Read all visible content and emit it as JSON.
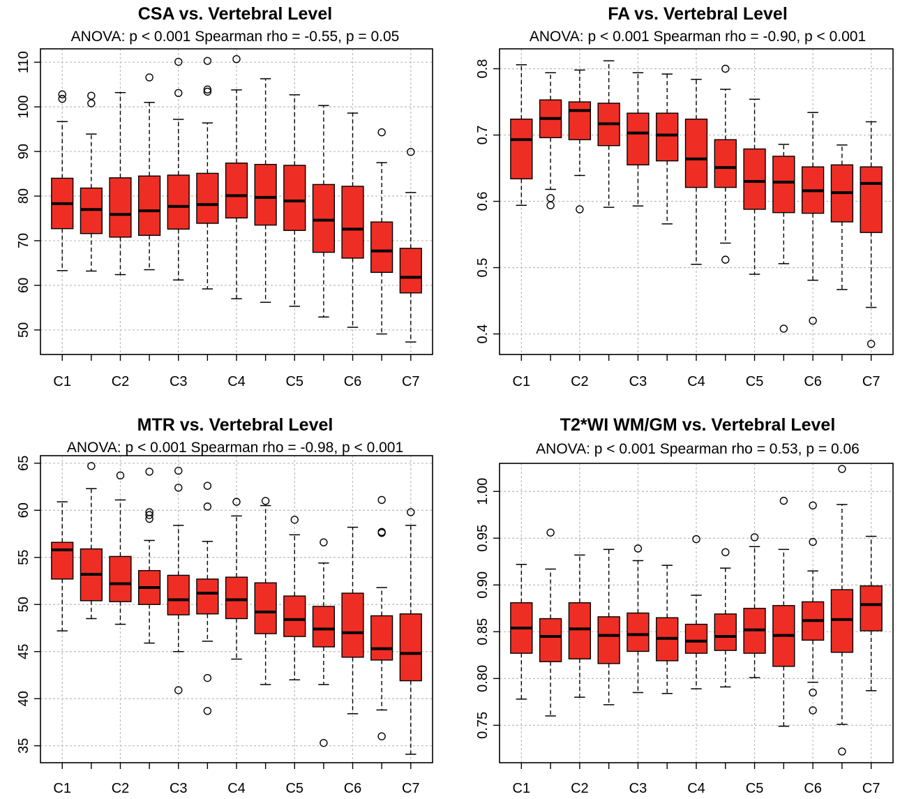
{
  "style": {
    "box_fill": "#ee2e24",
    "stroke": "#000000",
    "grid": "#bbbbbb"
  },
  "chart_data": [
    {
      "type": "box",
      "title": "CSA vs. Vertebral Level",
      "subtitle": "ANOVA: p < 0.001   Spearman rho = -0.55, p = 0.05",
      "xtick_labels": [
        "C1",
        "C2",
        "C3",
        "C4",
        "C5",
        "C6",
        "C7"
      ],
      "yticks": [
        50,
        60,
        70,
        80,
        90,
        100,
        110
      ],
      "ylim": [
        44.5,
        113
      ],
      "grid": true,
      "boxes": [
        {
          "min": 63.3,
          "q1": 72.7,
          "median": 78.3,
          "q3": 84.0,
          "max": 96.7,
          "outliers": [
            101.8,
            102.8
          ]
        },
        {
          "min": 63.2,
          "q1": 71.6,
          "median": 77.0,
          "q3": 81.8,
          "max": 93.9,
          "outliers": [
            100.8,
            102.5
          ]
        },
        {
          "min": 62.4,
          "q1": 70.8,
          "median": 75.9,
          "q3": 84.1,
          "max": 103.2,
          "outliers": []
        },
        {
          "min": 63.5,
          "q1": 71.2,
          "median": 76.7,
          "q3": 84.5,
          "max": 101.0,
          "outliers": [
            106.6
          ]
        },
        {
          "min": 61.2,
          "q1": 72.6,
          "median": 77.7,
          "q3": 84.7,
          "max": 97.2,
          "outliers": [
            103.1,
            110.1
          ]
        },
        {
          "min": 59.2,
          "q1": 73.9,
          "median": 78.1,
          "q3": 85.1,
          "max": 96.4,
          "outliers": [
            103.4,
            103.9,
            110.3
          ]
        },
        {
          "min": 57.0,
          "q1": 75.1,
          "median": 80.1,
          "q3": 87.4,
          "max": 103.8,
          "outliers": [
            110.7
          ]
        },
        {
          "min": 56.2,
          "q1": 73.5,
          "median": 79.7,
          "q3": 87.1,
          "max": 106.3,
          "outliers": []
        },
        {
          "min": 55.3,
          "q1": 72.3,
          "median": 78.9,
          "q3": 86.9,
          "max": 102.7,
          "outliers": []
        },
        {
          "min": 52.9,
          "q1": 67.4,
          "median": 74.6,
          "q3": 82.6,
          "max": 100.3,
          "outliers": []
        },
        {
          "min": 50.6,
          "q1": 66.1,
          "median": 72.6,
          "q3": 82.2,
          "max": 98.6,
          "outliers": []
        },
        {
          "min": 49.1,
          "q1": 62.9,
          "median": 67.7,
          "q3": 74.2,
          "max": 87.5,
          "outliers": [
            94.3
          ]
        },
        {
          "min": 47.3,
          "q1": 58.3,
          "median": 61.8,
          "q3": 68.3,
          "max": 80.8,
          "outliers": [
            89.9
          ]
        }
      ]
    },
    {
      "type": "box",
      "title": "FA vs. Vertebral Level",
      "subtitle": "ANOVA: p < 0.001   Spearman rho = -0.90, p < 0.001",
      "xtick_labels": [
        "C1",
        "C2",
        "C3",
        "C4",
        "C5",
        "C6",
        "C7"
      ],
      "yticks": [
        0.4,
        0.5,
        0.6,
        0.7,
        0.8
      ],
      "ylim": [
        0.369,
        0.83
      ],
      "grid": true,
      "boxes": [
        {
          "min": 0.594,
          "q1": 0.634,
          "median": 0.693,
          "q3": 0.724,
          "max": 0.806,
          "outliers": []
        },
        {
          "min": 0.618,
          "q1": 0.696,
          "median": 0.725,
          "q3": 0.753,
          "max": 0.794,
          "outliers": [
            0.594,
            0.605
          ]
        },
        {
          "min": 0.639,
          "q1": 0.693,
          "median": 0.737,
          "q3": 0.75,
          "max": 0.798,
          "outliers": [
            0.588
          ]
        },
        {
          "min": 0.591,
          "q1": 0.684,
          "median": 0.717,
          "q3": 0.748,
          "max": 0.812,
          "outliers": []
        },
        {
          "min": 0.593,
          "q1": 0.655,
          "median": 0.703,
          "q3": 0.733,
          "max": 0.794,
          "outliers": []
        },
        {
          "min": 0.566,
          "q1": 0.661,
          "median": 0.7,
          "q3": 0.733,
          "max": 0.792,
          "outliers": []
        },
        {
          "min": 0.505,
          "q1": 0.621,
          "median": 0.664,
          "q3": 0.724,
          "max": 0.784,
          "outliers": []
        },
        {
          "min": 0.537,
          "q1": 0.621,
          "median": 0.651,
          "q3": 0.693,
          "max": 0.769,
          "outliers": [
            0.8,
            0.512
          ]
        },
        {
          "min": 0.49,
          "q1": 0.588,
          "median": 0.63,
          "q3": 0.679,
          "max": 0.754,
          "outliers": []
        },
        {
          "min": 0.506,
          "q1": 0.583,
          "median": 0.629,
          "q3": 0.668,
          "max": 0.686,
          "outliers": [
            0.408
          ]
        },
        {
          "min": 0.481,
          "q1": 0.582,
          "median": 0.616,
          "q3": 0.652,
          "max": 0.734,
          "outliers": [
            0.42
          ]
        },
        {
          "min": 0.467,
          "q1": 0.569,
          "median": 0.613,
          "q3": 0.655,
          "max": 0.685,
          "outliers": []
        },
        {
          "min": 0.44,
          "q1": 0.553,
          "median": 0.627,
          "q3": 0.652,
          "max": 0.72,
          "outliers": [
            0.385
          ]
        }
      ]
    },
    {
      "type": "box",
      "title": "MTR vs. Vertebral Level",
      "subtitle": "ANOVA: p < 0.001   Spearman rho = -0.98, p < 0.001",
      "xtick_labels": [
        "C1",
        "C2",
        "C3",
        "C4",
        "C5",
        "C6",
        "C7"
      ],
      "yticks": [
        35,
        40,
        45,
        50,
        55,
        60,
        65
      ],
      "ylim": [
        33.2,
        65.8
      ],
      "grid": true,
      "boxes": [
        {
          "min": 47.2,
          "q1": 52.7,
          "median": 55.8,
          "q3": 56.6,
          "max": 60.9,
          "outliers": []
        },
        {
          "min": 48.5,
          "q1": 50.4,
          "median": 53.2,
          "q3": 55.9,
          "max": 62.3,
          "outliers": [
            64.7
          ]
        },
        {
          "min": 47.9,
          "q1": 50.3,
          "median": 52.2,
          "q3": 55.1,
          "max": 61.1,
          "outliers": [
            63.7
          ]
        },
        {
          "min": 45.9,
          "q1": 50.0,
          "median": 51.8,
          "q3": 53.6,
          "max": 56.8,
          "outliers": [
            64.1,
            59.8,
            59.5,
            59.1
          ]
        },
        {
          "min": 45.0,
          "q1": 48.9,
          "median": 50.5,
          "q3": 53.1,
          "max": 58.4,
          "outliers": [
            64.2,
            62.4,
            40.9
          ]
        },
        {
          "min": 46.1,
          "q1": 49.0,
          "median": 51.2,
          "q3": 52.7,
          "max": 56.7,
          "outliers": [
            62.6,
            60.4,
            42.2,
            38.7
          ]
        },
        {
          "min": 44.2,
          "q1": 48.5,
          "median": 50.5,
          "q3": 52.9,
          "max": 59.4,
          "outliers": [
            60.9
          ]
        },
        {
          "min": 41.5,
          "q1": 46.9,
          "median": 49.2,
          "q3": 52.3,
          "max": 60.5,
          "outliers": [
            61.0
          ]
        },
        {
          "min": 42.0,
          "q1": 46.6,
          "median": 48.4,
          "q3": 50.9,
          "max": 57.4,
          "outliers": [
            59.0
          ]
        },
        {
          "min": 41.5,
          "q1": 45.5,
          "median": 47.4,
          "q3": 49.8,
          "max": 54.4,
          "outliers": [
            56.6,
            35.3
          ]
        },
        {
          "min": 38.4,
          "q1": 44.4,
          "median": 47.0,
          "q3": 51.2,
          "max": 58.2,
          "outliers": []
        },
        {
          "min": 38.8,
          "q1": 44.1,
          "median": 45.3,
          "q3": 48.8,
          "max": 51.8,
          "outliers": [
            61.1,
            57.7,
            57.6,
            36.0
          ]
        },
        {
          "min": 34.1,
          "q1": 41.9,
          "median": 44.8,
          "q3": 49.0,
          "max": 58.4,
          "outliers": [
            59.8
          ]
        }
      ]
    },
    {
      "type": "box",
      "title": "T2*WI  WM/GM vs. Vertebral Level",
      "subtitle": "ANOVA: p < 0.001   Spearman rho = 0.53, p = 0.06",
      "xtick_labels": [
        "C1",
        "C2",
        "C3",
        "C4",
        "C5",
        "C6",
        "C7"
      ],
      "yticks": [
        0.75,
        0.8,
        0.85,
        0.9,
        0.95,
        1.0
      ],
      "ylim": [
        0.71,
        1.03
      ],
      "grid": true,
      "boxes": [
        {
          "min": 0.778,
          "q1": 0.827,
          "median": 0.854,
          "q3": 0.881,
          "max": 0.922,
          "outliers": []
        },
        {
          "min": 0.76,
          "q1": 0.818,
          "median": 0.845,
          "q3": 0.864,
          "max": 0.917,
          "outliers": [
            0.956
          ]
        },
        {
          "min": 0.78,
          "q1": 0.821,
          "median": 0.853,
          "q3": 0.881,
          "max": 0.932,
          "outliers": []
        },
        {
          "min": 0.772,
          "q1": 0.816,
          "median": 0.846,
          "q3": 0.866,
          "max": 0.938,
          "outliers": []
        },
        {
          "min": 0.785,
          "q1": 0.829,
          "median": 0.847,
          "q3": 0.87,
          "max": 0.926,
          "outliers": [
            0.939
          ]
        },
        {
          "min": 0.784,
          "q1": 0.819,
          "median": 0.843,
          "q3": 0.865,
          "max": 0.921,
          "outliers": []
        },
        {
          "min": 0.789,
          "q1": 0.827,
          "median": 0.84,
          "q3": 0.858,
          "max": 0.889,
          "outliers": [
            0.949
          ]
        },
        {
          "min": 0.791,
          "q1": 0.83,
          "median": 0.845,
          "q3": 0.869,
          "max": 0.918,
          "outliers": [
            0.935
          ]
        },
        {
          "min": 0.801,
          "q1": 0.827,
          "median": 0.852,
          "q3": 0.875,
          "max": 0.941,
          "outliers": [
            0.951
          ]
        },
        {
          "min": 0.749,
          "q1": 0.813,
          "median": 0.846,
          "q3": 0.878,
          "max": 0.938,
          "outliers": [
            0.99
          ]
        },
        {
          "min": 0.796,
          "q1": 0.841,
          "median": 0.862,
          "q3": 0.882,
          "max": 0.915,
          "outliers": [
            0.985,
            0.946,
            0.785,
            0.766
          ]
        },
        {
          "min": 0.751,
          "q1": 0.828,
          "median": 0.863,
          "q3": 0.895,
          "max": 0.986,
          "outliers": [
            1.024,
            0.722
          ]
        },
        {
          "min": 0.787,
          "q1": 0.851,
          "median": 0.879,
          "q3": 0.899,
          "max": 0.952,
          "outliers": []
        }
      ]
    }
  ]
}
